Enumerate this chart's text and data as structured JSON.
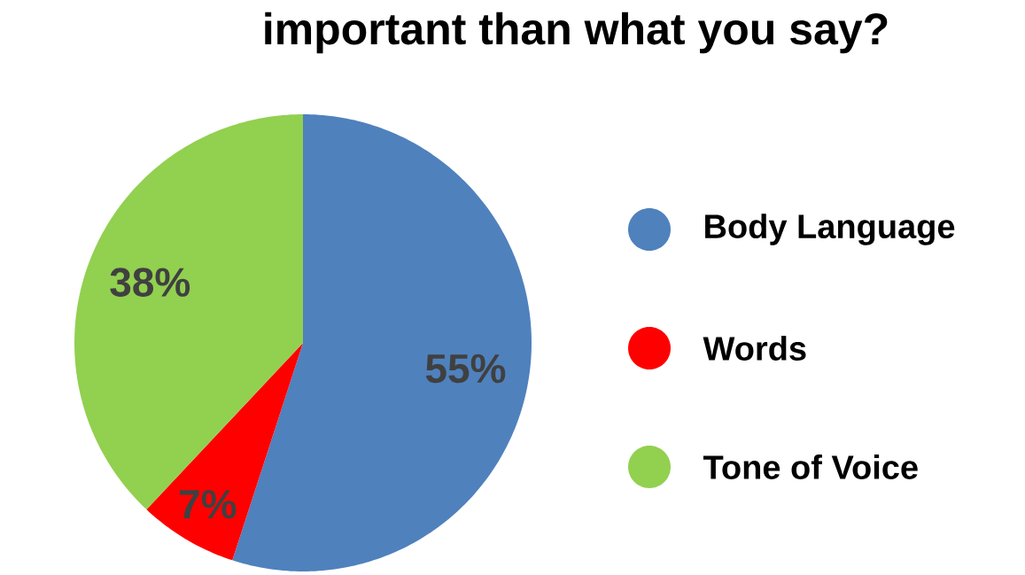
{
  "chart_data": {
    "type": "pie",
    "title": "important than what you say?",
    "categories": [
      "Body Language",
      "Words",
      "Tone of Voice"
    ],
    "values": [
      55,
      7,
      38
    ],
    "colors": [
      "#4f81bd",
      "#ff0000",
      "#92d050"
    ],
    "value_labels": [
      "55%",
      "7%",
      "38%"
    ],
    "legend": "right"
  }
}
